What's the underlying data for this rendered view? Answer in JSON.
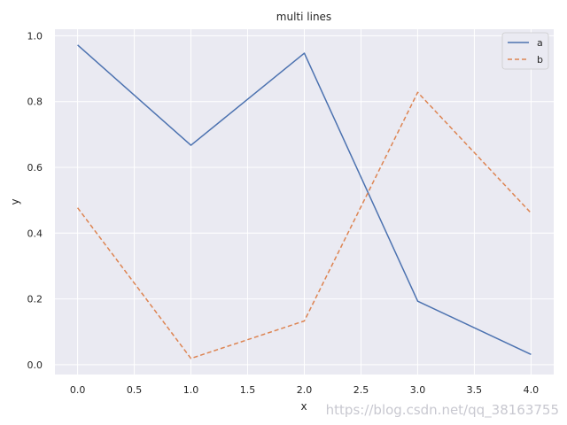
{
  "chart_data": {
    "type": "line",
    "title": "multi lines",
    "xlabel": "x",
    "ylabel": "y",
    "x": [
      0,
      1,
      2,
      3,
      4
    ],
    "xlim": [
      -0.2,
      4.2
    ],
    "ylim": [
      -0.03,
      1.02
    ],
    "xticks": [
      0.0,
      0.5,
      1.0,
      1.5,
      2.0,
      2.5,
      3.0,
      3.5,
      4.0
    ],
    "xtick_labels": [
      "0.0",
      "0.5",
      "1.0",
      "1.5",
      "2.0",
      "2.5",
      "3.0",
      "3.5",
      "4.0"
    ],
    "yticks": [
      0.0,
      0.2,
      0.4,
      0.6,
      0.8,
      1.0
    ],
    "ytick_labels": [
      "0.0",
      "0.2",
      "0.4",
      "0.6",
      "0.8",
      "1.0"
    ],
    "grid": true,
    "legend_position": "top-right",
    "background": "#eaeaf2",
    "series": [
      {
        "name": "a",
        "values": [
          0.972,
          0.667,
          0.947,
          0.193,
          0.031
        ],
        "color": "#4c72b0",
        "style": "solid"
      },
      {
        "name": "b",
        "values": [
          0.477,
          0.019,
          0.133,
          0.828,
          0.461
        ],
        "color": "#dd8452",
        "style": "dashed"
      }
    ]
  },
  "watermark": "https://blog.csdn.net/qq_38163755"
}
